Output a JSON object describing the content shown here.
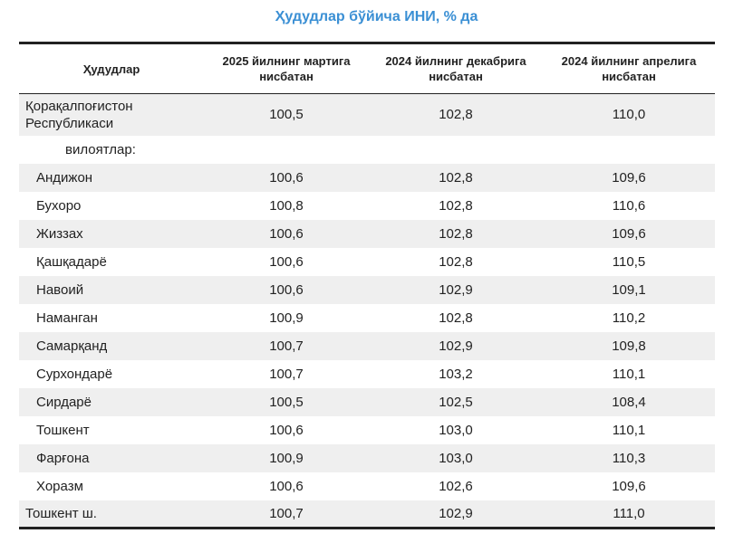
{
  "title": "Ҳудудлар бўйича ИНИ, % да",
  "table": {
    "headers": [
      "Ҳудудлар",
      "2025 йилнинг мартига нисбатан",
      "2024 йилнинг декабрига нисбатан",
      "2024 йилнинг апрелига нисбатан"
    ],
    "rows": [
      {
        "region": "Қорақалпоғистон Республикаси",
        "mar2025": "100,5",
        "dec2024": "102,8",
        "apr2024": "110,0"
      },
      {
        "region": "вилоятлар:",
        "mar2025": "",
        "dec2024": "",
        "apr2024": ""
      },
      {
        "region": "Андижон",
        "mar2025": "100,6",
        "dec2024": "102,8",
        "apr2024": "109,6"
      },
      {
        "region": "Бухоро",
        "mar2025": "100,8",
        "dec2024": "102,8",
        "apr2024": "110,6"
      },
      {
        "region": "Жиззах",
        "mar2025": "100,6",
        "dec2024": "102,8",
        "apr2024": "109,6"
      },
      {
        "region": "Қашқадарё",
        "mar2025": "100,6",
        "dec2024": "102,8",
        "apr2024": "110,5"
      },
      {
        "region": "Навоий",
        "mar2025": "100,6",
        "dec2024": "102,9",
        "apr2024": "109,1"
      },
      {
        "region": "Наманган",
        "mar2025": "100,9",
        "dec2024": "102,8",
        "apr2024": "110,2"
      },
      {
        "region": "Самарқанд",
        "mar2025": "100,7",
        "dec2024": "102,9",
        "apr2024": "109,8"
      },
      {
        "region": "Сурхондарё",
        "mar2025": "100,7",
        "dec2024": "103,2",
        "apr2024": "110,1"
      },
      {
        "region": "Сирдарё",
        "mar2025": "100,5",
        "dec2024": "102,5",
        "apr2024": "108,4"
      },
      {
        "region": "Тошкент",
        "mar2025": "100,6",
        "dec2024": "103,0",
        "apr2024": "110,1"
      },
      {
        "region": "Фарғона",
        "mar2025": "100,9",
        "dec2024": "103,0",
        "apr2024": "110,3"
      },
      {
        "region": "Хоразм",
        "mar2025": "100,6",
        "dec2024": "102,6",
        "apr2024": "109,6"
      },
      {
        "region": "Тошкент ш.",
        "mar2025": "100,7",
        "dec2024": "102,9",
        "apr2024": "111,0"
      }
    ]
  }
}
